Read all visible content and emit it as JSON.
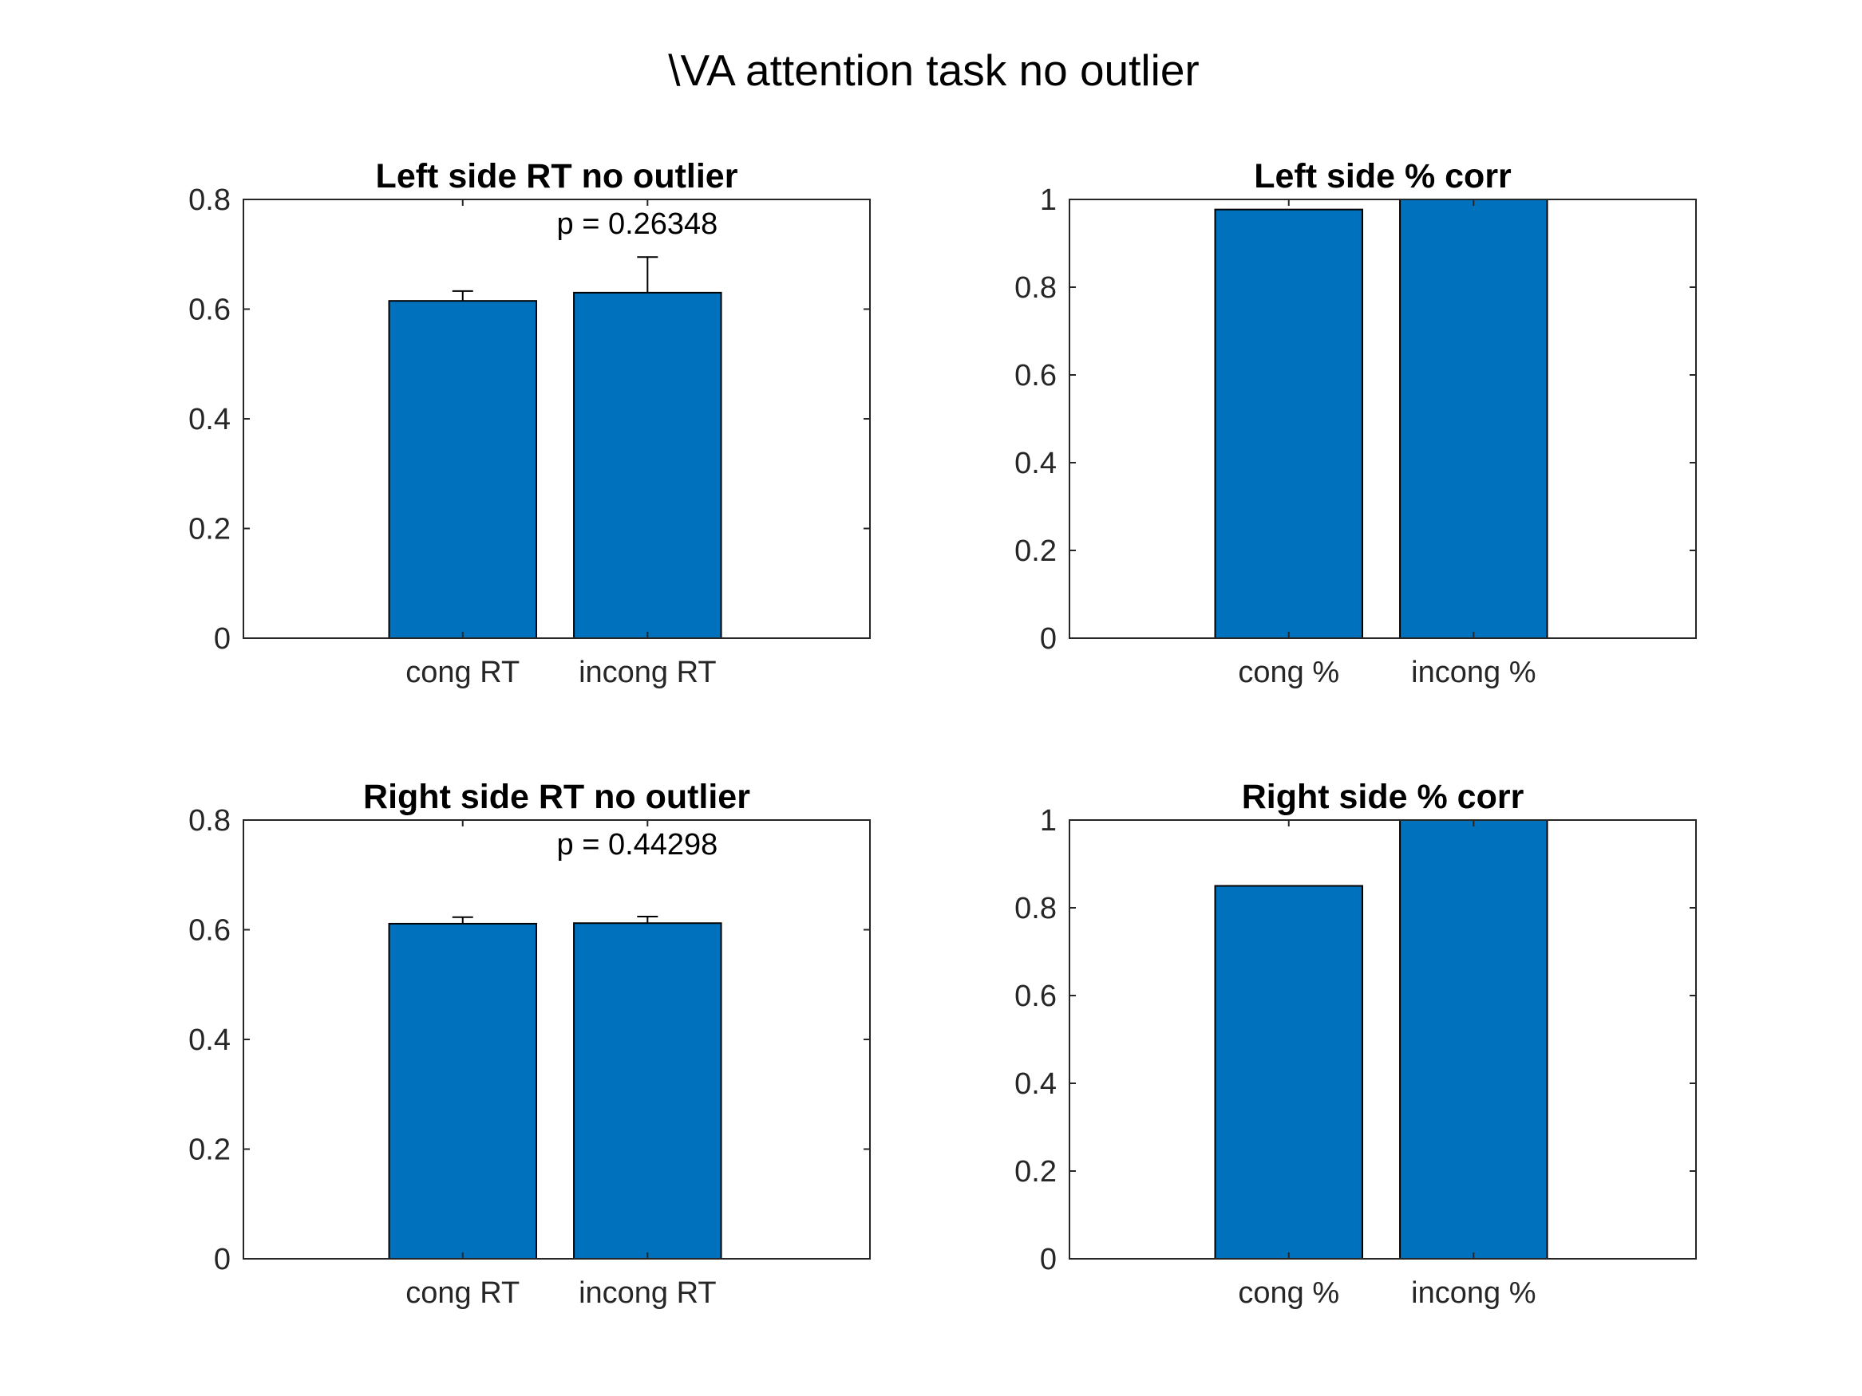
{
  "figure": {
    "title": "\\VA attention task no outlier"
  },
  "colors": {
    "bar_fill": "#0072BD",
    "axis": "#262626"
  },
  "chart_data": [
    {
      "type": "bar",
      "title": "Left side RT no outlier",
      "categories": [
        "cong RT",
        "incong RT"
      ],
      "values": [
        0.615,
        0.63
      ],
      "error_upper": [
        0.633,
        0.695
      ],
      "annotation": "p = 0.26348",
      "ylim": [
        0,
        0.8
      ],
      "yticks": [
        "0",
        "0.2",
        "0.4",
        "0.6",
        "0.8"
      ],
      "grid": false
    },
    {
      "type": "bar",
      "title": "Left side % corr",
      "categories": [
        "cong %",
        "incong %"
      ],
      "values": [
        0.977,
        1.0
      ],
      "ylim": [
        0,
        1
      ],
      "yticks": [
        "0",
        "0.2",
        "0.4",
        "0.6",
        "0.8",
        "1"
      ],
      "grid": false
    },
    {
      "type": "bar",
      "title": "Right side RT no outlier",
      "categories": [
        "cong RT",
        "incong RT"
      ],
      "values": [
        0.611,
        0.612
      ],
      "error_upper": [
        0.623,
        0.624
      ],
      "annotation": "p = 0.44298",
      "ylim": [
        0,
        0.8
      ],
      "yticks": [
        "0",
        "0.2",
        "0.4",
        "0.6",
        "0.8"
      ],
      "grid": false
    },
    {
      "type": "bar",
      "title": "Right side % corr",
      "categories": [
        "cong %",
        "incong %"
      ],
      "values": [
        0.85,
        1.0
      ],
      "ylim": [
        0,
        1
      ],
      "yticks": [
        "0",
        "0.2",
        "0.4",
        "0.6",
        "0.8",
        "1"
      ],
      "grid": false
    }
  ]
}
